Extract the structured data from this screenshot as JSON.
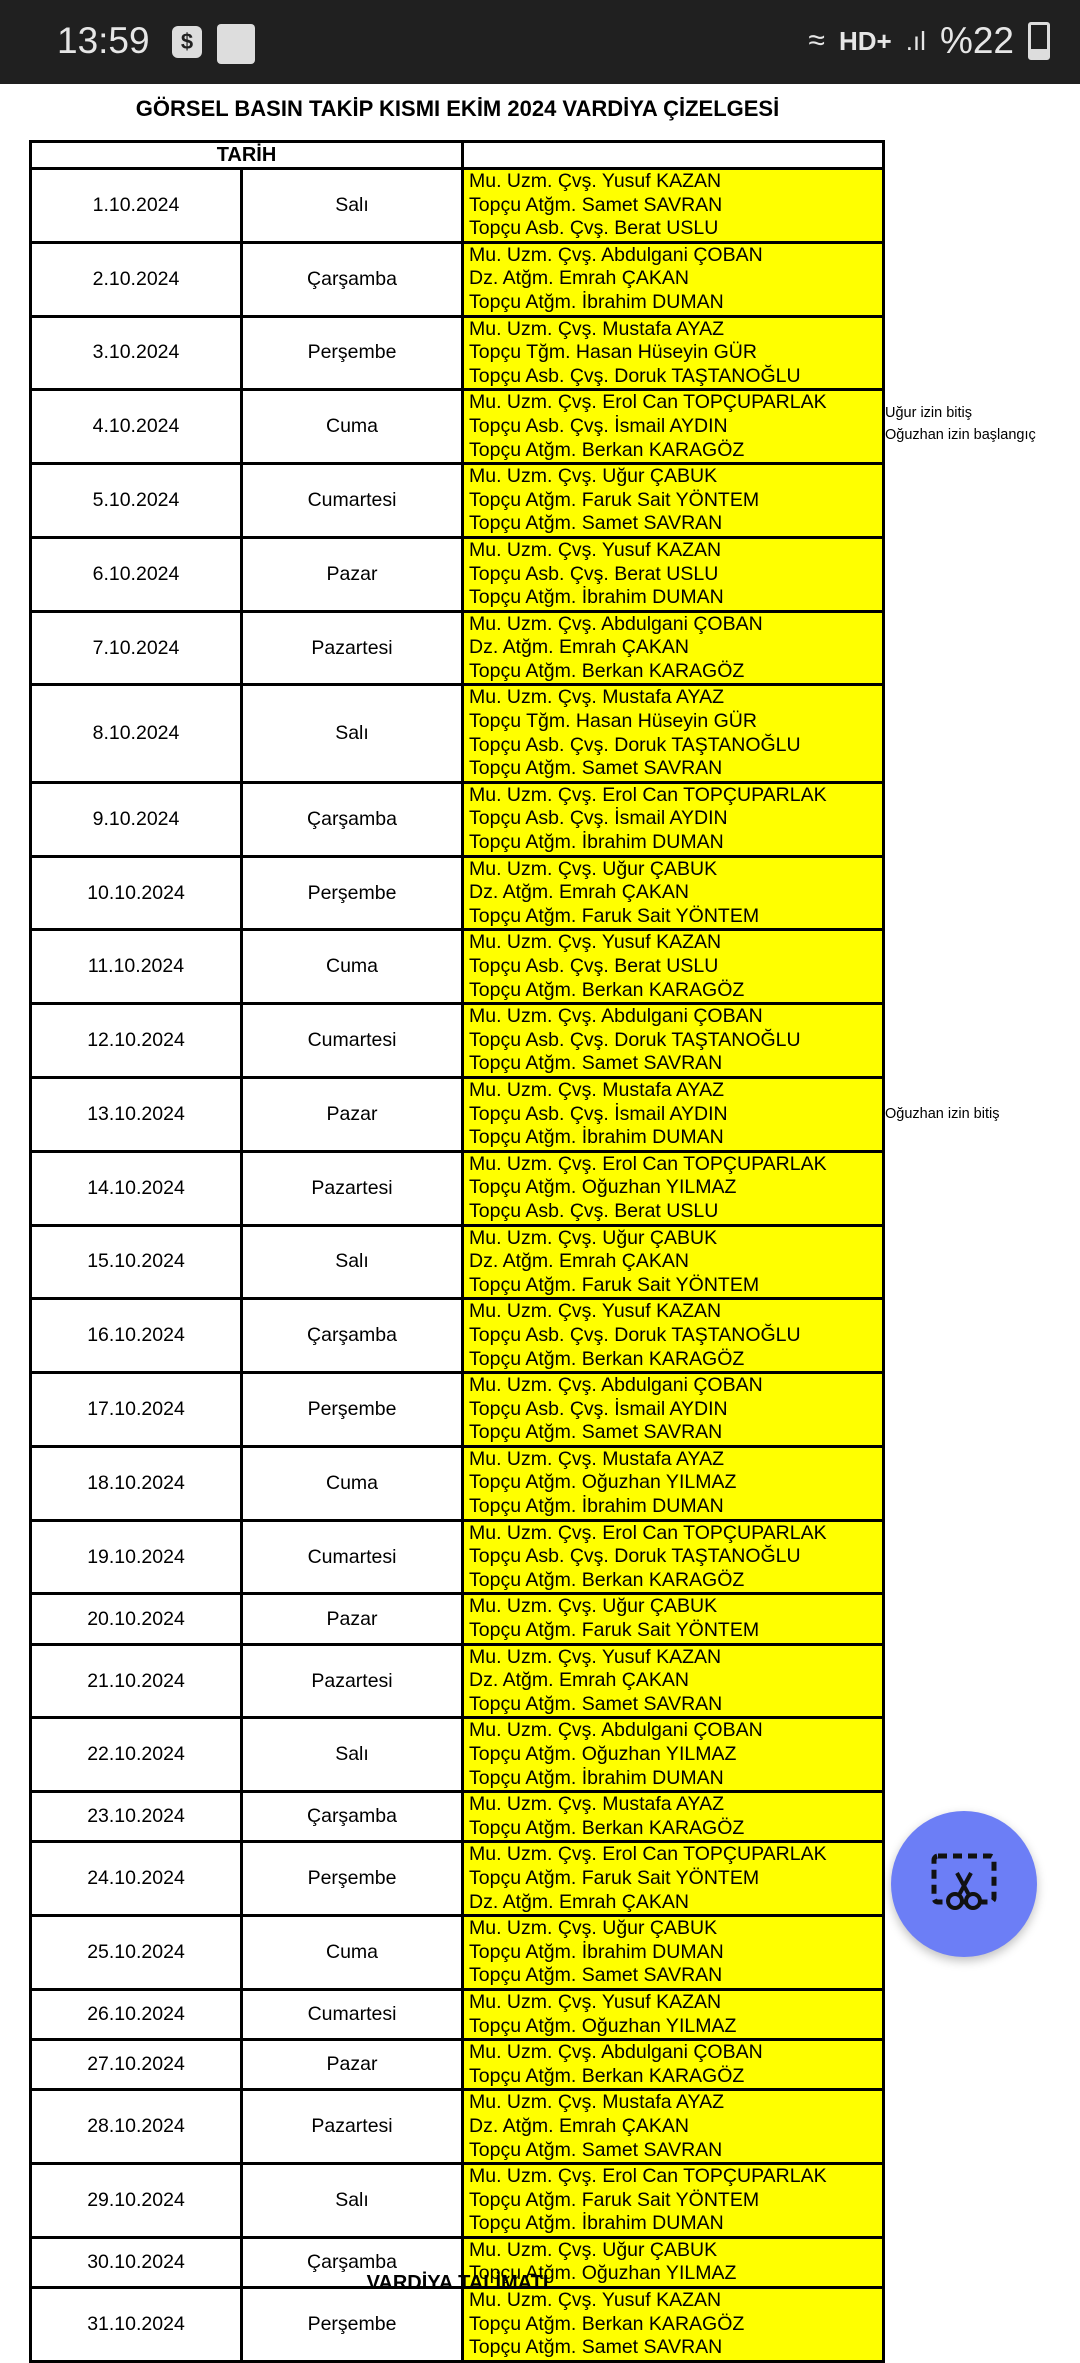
{
  "status_bar": {
    "time": "13:59",
    "network": "HD+",
    "battery": "%22"
  },
  "title": "GÖRSEL BASIN TAKİP KISMI EKİM 2024 VARDİYA ÇİZELGESİ",
  "table": {
    "header_date": "TARİH",
    "header_names": "",
    "rows": [
      {
        "date": "1.10.2024",
        "day": "Salı",
        "names": [
          "Mu. Uzm. Çvş. Yusuf KAZAN",
          "Topçu Atğm. Samet SAVRAN",
          "Topçu Asb. Çvş. Berat USLU"
        ]
      },
      {
        "date": "2.10.2024",
        "day": "Çarşamba",
        "names": [
          "Mu. Uzm. Çvş. Abdulgani ÇOBAN",
          "Dz. Atğm. Emrah ÇAKAN",
          "Topçu Atğm. İbrahim DUMAN"
        ]
      },
      {
        "date": "3.10.2024",
        "day": "Perşembe",
        "names": [
          "Mu. Uzm. Çvş. Mustafa AYAZ",
          "Topçu Tğm. Hasan Hüseyin GÜR",
          "Topçu Asb. Çvş. Doruk TAŞTANOĞLU"
        ]
      },
      {
        "date": "4.10.2024",
        "day": "Cuma",
        "names": [
          "Mu. Uzm. Çvş. Erol Can TOPÇUPARLAK",
          "Topçu Asb. Çvş. İsmail AYDIN",
          "Topçu Atğm. Berkan KARAGÖZ"
        ],
        "note": [
          "Uğur izin bitiş",
          "Oğuzhan izin başlangıç"
        ]
      },
      {
        "date": "5.10.2024",
        "day": "Cumartesi",
        "names": [
          "Mu. Uzm. Çvş. Uğur ÇABUK",
          "Topçu Atğm. Faruk Sait YÖNTEM",
          "Topçu Atğm. Samet SAVRAN"
        ]
      },
      {
        "date": "6.10.2024",
        "day": "Pazar",
        "names": [
          "Mu. Uzm. Çvş. Yusuf KAZAN",
          "Topçu Asb. Çvş. Berat USLU",
          "Topçu Atğm. İbrahim DUMAN"
        ]
      },
      {
        "date": "7.10.2024",
        "day": "Pazartesi",
        "names": [
          "Mu. Uzm. Çvş. Abdulgani ÇOBAN",
          "Dz. Atğm. Emrah ÇAKAN",
          "Topçu Atğm. Berkan KARAGÖZ"
        ]
      },
      {
        "date": "8.10.2024",
        "day": "Salı",
        "names": [
          "Mu. Uzm. Çvş. Mustafa AYAZ",
          "Topçu Tğm. Hasan Hüseyin GÜR",
          "Topçu Asb. Çvş. Doruk TAŞTANOĞLU",
          "Topçu Atğm. Samet SAVRAN"
        ]
      },
      {
        "date": "9.10.2024",
        "day": "Çarşamba",
        "names": [
          "Mu. Uzm. Çvş. Erol Can TOPÇUPARLAK",
          "Topçu Asb. Çvş. İsmail AYDIN",
          "Topçu Atğm. İbrahim DUMAN"
        ]
      },
      {
        "date": "10.10.2024",
        "day": "Perşembe",
        "names": [
          "Mu. Uzm. Çvş. Uğur ÇABUK",
          "Dz. Atğm. Emrah ÇAKAN",
          "Topçu Atğm. Faruk Sait YÖNTEM"
        ]
      },
      {
        "date": "11.10.2024",
        "day": "Cuma",
        "names": [
          "Mu. Uzm. Çvş. Yusuf KAZAN",
          "Topçu Asb. Çvş. Berat USLU",
          "Topçu Atğm. Berkan KARAGÖZ"
        ]
      },
      {
        "date": "12.10.2024",
        "day": "Cumartesi",
        "names": [
          "Mu. Uzm. Çvş. Abdulgani ÇOBAN",
          "Topçu Asb. Çvş. Doruk TAŞTANOĞLU",
          "Topçu Atğm. Samet SAVRAN"
        ]
      },
      {
        "date": "13.10.2024",
        "day": "Pazar",
        "names": [
          "Mu. Uzm. Çvş. Mustafa AYAZ",
          "Topçu Asb. Çvş. İsmail AYDIN",
          "Topçu Atğm. İbrahim DUMAN"
        ],
        "note": [
          "Oğuzhan izin bitiş"
        ]
      },
      {
        "date": "14.10.2024",
        "day": "Pazartesi",
        "names": [
          "Mu. Uzm. Çvş. Erol Can TOPÇUPARLAK",
          "Topçu Atğm. Oğuzhan YILMAZ",
          "Topçu Asb. Çvş. Berat USLU"
        ]
      },
      {
        "date": "15.10.2024",
        "day": "Salı",
        "names": [
          "Mu. Uzm. Çvş. Uğur ÇABUK",
          "Dz. Atğm. Emrah ÇAKAN",
          "Topçu Atğm. Faruk Sait YÖNTEM"
        ]
      },
      {
        "date": "16.10.2024",
        "day": "Çarşamba",
        "names": [
          "Mu. Uzm. Çvş. Yusuf KAZAN",
          "Topçu Asb. Çvş. Doruk TAŞTANOĞLU",
          "Topçu Atğm. Berkan KARAGÖZ"
        ]
      },
      {
        "date": "17.10.2024",
        "day": "Perşembe",
        "names": [
          "Mu. Uzm. Çvş. Abdulgani ÇOBAN",
          "Topçu Asb. Çvş. İsmail AYDIN",
          "Topçu Atğm. Samet SAVRAN"
        ]
      },
      {
        "date": "18.10.2024",
        "day": "Cuma",
        "names": [
          "Mu. Uzm. Çvş. Mustafa AYAZ",
          "Topçu Atğm. Oğuzhan YILMAZ",
          "Topçu Atğm. İbrahim DUMAN"
        ]
      },
      {
        "date": "19.10.2024",
        "day": "Cumartesi",
        "names": [
          "Mu. Uzm. Çvş. Erol Can TOPÇUPARLAK",
          "Topçu Asb. Çvş. Doruk TAŞTANOĞLU",
          "Topçu Atğm. Berkan KARAGÖZ"
        ]
      },
      {
        "date": "20.10.2024",
        "day": "Pazar",
        "names": [
          "Mu. Uzm. Çvş. Uğur ÇABUK",
          "Topçu Atğm. Faruk Sait YÖNTEM"
        ]
      },
      {
        "date": "21.10.2024",
        "day": "Pazartesi",
        "names": [
          "Mu. Uzm. Çvş. Yusuf KAZAN",
          "Dz. Atğm. Emrah ÇAKAN",
          "Topçu Atğm. Samet SAVRAN"
        ]
      },
      {
        "date": "22.10.2024",
        "day": "Salı",
        "names": [
          "Mu. Uzm. Çvş. Abdulgani ÇOBAN",
          "Topçu Atğm. Oğuzhan YILMAZ",
          "Topçu Atğm. İbrahim DUMAN"
        ]
      },
      {
        "date": "23.10.2024",
        "day": "Çarşamba",
        "names": [
          "Mu. Uzm. Çvş. Mustafa AYAZ",
          "Topçu Atğm. Berkan KARAGÖZ"
        ]
      },
      {
        "date": "24.10.2024",
        "day": "Perşembe",
        "names": [
          "Mu. Uzm. Çvş. Erol Can TOPÇUPARLAK",
          "Topçu Atğm. Faruk Sait YÖNTEM",
          "Dz. Atğm. Emrah ÇAKAN"
        ]
      },
      {
        "date": "25.10.2024",
        "day": "Cuma",
        "names": [
          "Mu. Uzm. Çvş. Uğur ÇABUK",
          "Topçu Atğm. İbrahim DUMAN",
          "Topçu Atğm. Samet SAVRAN"
        ]
      },
      {
        "date": "26.10.2024",
        "day": "Cumartesi",
        "names": [
          "Mu. Uzm. Çvş. Yusuf KAZAN",
          "Topçu Atğm. Oğuzhan YILMAZ"
        ]
      },
      {
        "date": "27.10.2024",
        "day": "Pazar",
        "names": [
          "Mu. Uzm. Çvş. Abdulgani ÇOBAN",
          "Topçu Atğm. Berkan KARAGÖZ"
        ]
      },
      {
        "date": "28.10.2024",
        "day": "Pazartesi",
        "names": [
          "Mu. Uzm. Çvş. Mustafa AYAZ",
          "Dz. Atğm. Emrah ÇAKAN",
          "Topçu Atğm. Samet SAVRAN"
        ]
      },
      {
        "date": "29.10.2024",
        "day": "Salı",
        "names": [
          "Mu. Uzm. Çvş. Erol Can TOPÇUPARLAK",
          "Topçu Atğm. Faruk Sait YÖNTEM",
          "Topçu Atğm. İbrahim DUMAN"
        ]
      },
      {
        "date": "30.10.2024",
        "day": "Çarşamba",
        "names": [
          "Mu. Uzm. Çvş. Uğur ÇABUK",
          "Topçu Atğm. Oğuzhan YILMAZ"
        ]
      },
      {
        "date": "31.10.2024",
        "day": "Perşembe",
        "names": [
          "Mu. Uzm. Çvş. Yusuf KAZAN",
          "Topçu Atğm. Berkan KARAGÖZ",
          "Topçu Atğm. Samet SAVRAN"
        ]
      }
    ]
  },
  "footer": "VARDİYA TALİMATI",
  "fab": {
    "icon": "screenshot-scissors-icon",
    "color": "#6c7ef6"
  },
  "colors": {
    "highlight": "#ffff00",
    "status_bar": "#202020"
  }
}
